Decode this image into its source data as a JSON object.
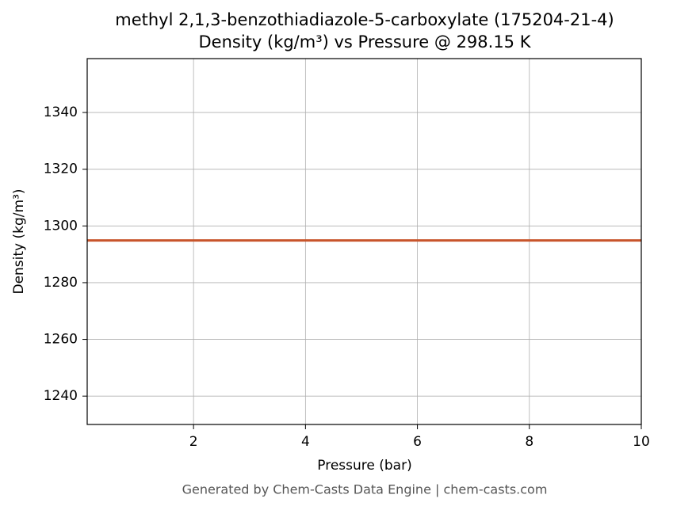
{
  "chart_data": {
    "type": "line",
    "title": "methyl 2,1,3-benzothiadiazole-5-carboxylate (175204-21-4)",
    "subtitle": "Density (kg/m³) vs Pressure @ 298.15 K",
    "x_label": "Pressure (bar)",
    "y_label": "Density (kg/m³)",
    "footer": "Generated by Chem-Casts Data Engine | chem-casts.com",
    "x": [
      0.1,
      10
    ],
    "series": [
      {
        "name": "Density",
        "color": "#c8552b",
        "values": [
          1294.9,
          1294.9
        ]
      }
    ],
    "xlim": [
      0.1,
      10
    ],
    "xticks": [
      2,
      4,
      6,
      8,
      10
    ],
    "ylim": [
      1230,
      1359
    ],
    "yticks": [
      1240,
      1260,
      1280,
      1300,
      1320,
      1340
    ],
    "grid": true
  }
}
